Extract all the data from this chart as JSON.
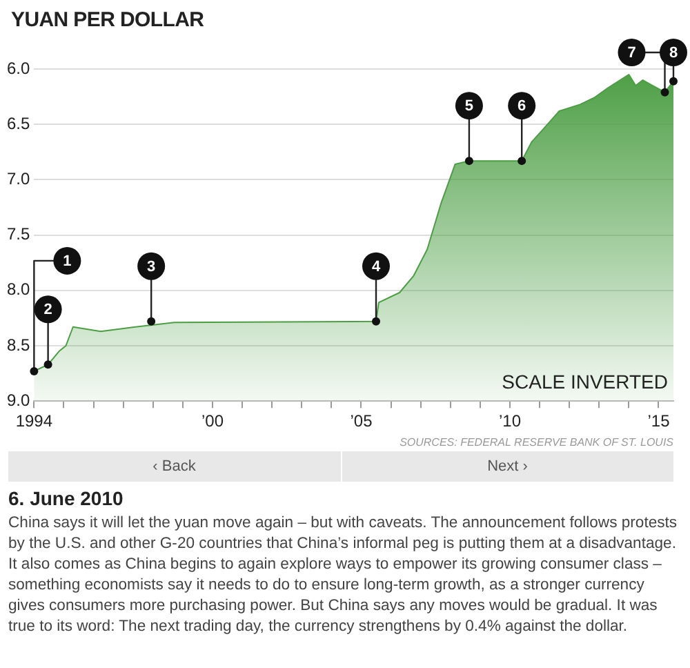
{
  "chart_data": {
    "type": "area",
    "title": "YUAN PER DOLLAR",
    "x": [
      1994.0,
      1994.47,
      1994.84,
      1995.07,
      1995.31,
      1996.24,
      1997.41,
      1998.72,
      2005.5,
      2005.59,
      2006.29,
      2006.76,
      2007.22,
      2007.69,
      2008.16,
      2008.63,
      2010.4,
      2010.73,
      2011.2,
      2011.66,
      2012.36,
      2012.83,
      2013.3,
      2014.0,
      2014.23,
      2014.47,
      2014.8,
      2015.21,
      2015.5
    ],
    "series": [
      {
        "color": "#4c9e44",
        "values": [
          8.73,
          8.67,
          8.55,
          8.5,
          8.33,
          8.37,
          8.33,
          8.29,
          8.28,
          8.11,
          8.02,
          7.87,
          7.63,
          7.21,
          6.86,
          6.83,
          6.83,
          6.66,
          6.52,
          6.38,
          6.32,
          6.26,
          6.17,
          6.05,
          6.15,
          6.1,
          6.15,
          6.21,
          6.11
        ]
      }
    ],
    "xlim": [
      1994,
      2015.5
    ],
    "xticks": [
      {
        "value": 1994,
        "label": "1994"
      },
      {
        "value": 1995,
        "label": null
      },
      {
        "value": 1996,
        "label": null
      },
      {
        "value": 1997,
        "label": null
      },
      {
        "value": 1998,
        "label": null
      },
      {
        "value": 1999,
        "label": null
      },
      {
        "value": 2000,
        "label": "’00"
      },
      {
        "value": 2001,
        "label": null
      },
      {
        "value": 2002,
        "label": null
      },
      {
        "value": 2003,
        "label": null
      },
      {
        "value": 2004,
        "label": null
      },
      {
        "value": 2005,
        "label": "’05"
      },
      {
        "value": 2006,
        "label": null
      },
      {
        "value": 2007,
        "label": null
      },
      {
        "value": 2008,
        "label": null
      },
      {
        "value": 2009,
        "label": null
      },
      {
        "value": 2010,
        "label": "’10"
      },
      {
        "value": 2011,
        "label": null
      },
      {
        "value": 2012,
        "label": null
      },
      {
        "value": 2013,
        "label": null
      },
      {
        "value": 2014,
        "label": null
      },
      {
        "value": 2015,
        "label": "’15"
      }
    ],
    "ylim": [
      9.0,
      6.0
    ],
    "yticks": [
      {
        "value": 6.0,
        "label": "6.0"
      },
      {
        "value": 6.5,
        "label": "6.5"
      },
      {
        "value": 7.0,
        "label": "7.0"
      },
      {
        "value": 7.5,
        "label": "7.5"
      },
      {
        "value": 8.0,
        "label": "8.0"
      },
      {
        "value": 8.5,
        "label": "8.5"
      },
      {
        "value": 9.0,
        "label": "9.0"
      }
    ],
    "grid": "y",
    "marker": "none",
    "legend": false,
    "annotations": [
      {
        "text": "1",
        "x": 1994.0,
        "y": 8.73
      },
      {
        "text": "2",
        "x": 1994.47,
        "y": 8.67
      },
      {
        "text": "3",
        "x": 1997.94,
        "y": 8.28
      },
      {
        "text": "4",
        "x": 2005.5,
        "y": 8.28
      },
      {
        "text": "5",
        "x": 2008.63,
        "y": 6.83
      },
      {
        "text": "6",
        "x": 2010.4,
        "y": 6.83
      },
      {
        "text": "7",
        "x": 2015.21,
        "y": 6.21
      },
      {
        "text": "8",
        "x": 2015.5,
        "y": 6.11
      },
      "SCALE INVERTED",
      "SOURCES: FEDERAL RESERVE BANK OF ST. LOUIS",
      "‹ Back",
      "Next ›",
      "6. June 2010",
      "China says it will let the yuan move again – but with caveats. The announcement follows protests by the U.S. and other G-20 countries that China’s informal peg is putting them at a disadvantage. It also comes as China begins to again explore ways to empower its growing consumer class – something economists say it needs to do to ensure long-term growth, as a stronger currency gives consumers more purchasing power. But China says any moves would be gradual. It was true to its word: The next trading day, the currency strengthens by 0.4% against the dollar."
    ]
  }
}
